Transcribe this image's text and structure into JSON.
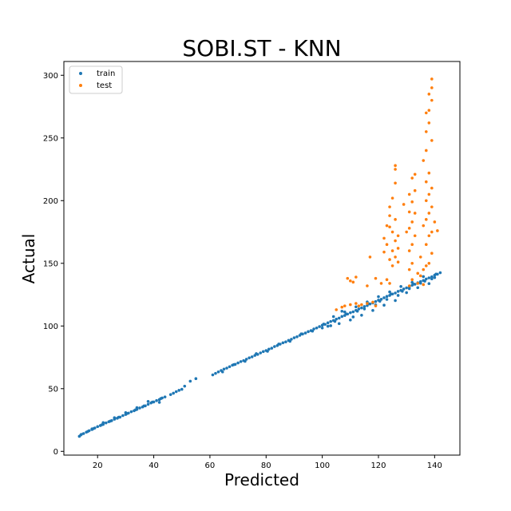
{
  "chart_data": {
    "type": "scatter",
    "title": "SOBI.ST - KNN",
    "xlabel": "Predicted",
    "ylabel": "Actual",
    "xlim": [
      8,
      149
    ],
    "ylim": [
      -3,
      311
    ],
    "xticks": [
      20,
      40,
      60,
      80,
      100,
      120,
      140
    ],
    "yticks": [
      0,
      50,
      100,
      150,
      200,
      250,
      300
    ],
    "grid": false,
    "legend": "top-left",
    "series": [
      {
        "name": "train",
        "color": "#1f77b4",
        "points": [
          [
            13.5,
            12
          ],
          [
            14.2,
            13.5
          ],
          [
            15,
            14.2
          ],
          [
            16,
            15.3
          ],
          [
            17,
            16.5
          ],
          [
            18,
            17.4
          ],
          [
            19,
            18.6
          ],
          [
            20,
            19.7
          ],
          [
            21,
            20.6
          ],
          [
            22,
            21.5
          ],
          [
            23,
            22.7
          ],
          [
            24,
            23.6
          ],
          [
            25,
            24.5
          ],
          [
            26,
            25.6
          ],
          [
            27,
            26.4
          ],
          [
            28,
            27.3
          ],
          [
            29,
            28.5
          ],
          [
            30,
            29.4
          ],
          [
            31,
            30.5
          ],
          [
            32,
            31.6
          ],
          [
            33,
            32.4
          ],
          [
            34,
            33.5
          ],
          [
            35,
            34.6
          ],
          [
            36,
            35.4
          ],
          [
            37,
            36.3
          ],
          [
            38,
            37.5
          ],
          [
            39,
            38.6
          ],
          [
            40,
            39.4
          ],
          [
            41,
            40.5
          ],
          [
            42,
            41.3
          ],
          [
            43,
            42.6
          ],
          [
            44,
            43.4
          ],
          [
            14,
            13
          ],
          [
            16.5,
            15.8
          ],
          [
            18.5,
            18.1
          ],
          [
            21.5,
            21.2
          ],
          [
            24.5,
            24.1
          ],
          [
            27.5,
            27.2
          ],
          [
            30.5,
            30.2
          ],
          [
            33.5,
            33.1
          ],
          [
            36.5,
            36.2
          ],
          [
            39.5,
            39.3
          ],
          [
            42.5,
            42.1
          ],
          [
            46,
            45.3
          ],
          [
            47,
            46.4
          ],
          [
            48,
            47.6
          ],
          [
            49,
            48.7
          ],
          [
            50,
            49.5
          ],
          [
            51,
            52
          ],
          [
            53,
            56
          ],
          [
            55,
            58
          ],
          [
            61,
            61
          ],
          [
            62,
            62.2
          ],
          [
            63,
            63.4
          ],
          [
            64,
            64.5
          ],
          [
            65,
            65.6
          ],
          [
            66,
            66.4
          ],
          [
            67,
            67.5
          ],
          [
            68,
            68.7
          ],
          [
            69,
            69.4
          ],
          [
            70,
            70.5
          ],
          [
            71,
            71.6
          ],
          [
            72,
            72.4
          ],
          [
            73,
            73.5
          ],
          [
            74,
            74.6
          ],
          [
            75,
            75.4
          ],
          [
            76,
            76.5
          ],
          [
            77,
            77.3
          ],
          [
            78,
            78.5
          ],
          [
            79,
            79.6
          ],
          [
            80,
            80.4
          ],
          [
            81,
            81.5
          ],
          [
            82,
            82.3
          ],
          [
            83,
            83.6
          ],
          [
            84,
            84.4
          ],
          [
            85,
            85.5
          ],
          [
            86,
            86.6
          ],
          [
            87,
            87.3
          ],
          [
            88,
            88.5
          ],
          [
            89,
            89.4
          ],
          [
            90,
            90.6
          ],
          [
            91,
            91.4
          ],
          [
            92,
            92.5
          ],
          [
            93,
            93.6
          ],
          [
            94,
            94.4
          ],
          [
            95,
            95.5
          ],
          [
            96,
            96.3
          ],
          [
            97,
            97.6
          ],
          [
            98,
            98.4
          ],
          [
            99,
            99.5
          ],
          [
            100,
            100.6
          ],
          [
            101,
            101.3
          ],
          [
            102,
            102.5
          ],
          [
            103,
            103.6
          ],
          [
            104,
            104.4
          ],
          [
            105,
            105.5
          ],
          [
            106,
            106.3
          ],
          [
            107,
            107.6
          ],
          [
            108,
            108.4
          ],
          [
            109,
            109.5
          ],
          [
            110,
            110.6
          ],
          [
            111,
            111.3
          ],
          [
            112,
            112.5
          ],
          [
            113,
            113.6
          ],
          [
            114,
            114.4
          ],
          [
            115,
            115.5
          ],
          [
            116,
            116.3
          ],
          [
            117,
            117.6
          ],
          [
            118,
            118.4
          ],
          [
            119,
            119.5
          ],
          [
            120,
            120.6
          ],
          [
            121,
            121.3
          ],
          [
            122,
            122.5
          ],
          [
            123,
            123.6
          ],
          [
            124,
            124.4
          ],
          [
            125,
            125.5
          ],
          [
            126,
            126.3
          ],
          [
            127,
            127.6
          ],
          [
            128,
            128.4
          ],
          [
            129,
            129.5
          ],
          [
            130,
            130.4
          ],
          [
            131,
            131.2
          ],
          [
            132,
            132.5
          ],
          [
            133,
            133.3
          ],
          [
            134,
            134.5
          ],
          [
            135,
            135.4
          ],
          [
            136,
            136.3
          ],
          [
            137,
            137.5
          ],
          [
            138,
            138.4
          ],
          [
            139,
            139.2
          ],
          [
            140,
            140.5
          ],
          [
            141,
            141.3
          ],
          [
            142,
            142.5
          ],
          [
            64.5,
            63.4
          ],
          [
            68.5,
            69.2
          ],
          [
            72.5,
            71.8
          ],
          [
            76.5,
            77.9
          ],
          [
            80.5,
            79.8
          ],
          [
            84.5,
            85.6
          ],
          [
            88.5,
            87.8
          ],
          [
            92.5,
            93.7
          ],
          [
            96.5,
            95.9
          ],
          [
            100.5,
            101.5
          ],
          [
            104.5,
            103.7
          ],
          [
            108.5,
            109.6
          ],
          [
            112.5,
            111.8
          ],
          [
            116.5,
            117.7
          ],
          [
            120.5,
            119.8
          ],
          [
            124.5,
            125.5
          ],
          [
            128.5,
            127.7
          ],
          [
            132.5,
            133.4
          ],
          [
            136.5,
            135.8
          ],
          [
            140.5,
            141.4
          ],
          [
            102,
            99.8
          ],
          [
            104,
            107.5
          ],
          [
            106,
            101.9
          ],
          [
            108,
            111.2
          ],
          [
            110,
            104.8
          ],
          [
            112,
            115.3
          ],
          [
            114,
            108.6
          ],
          [
            116,
            119.2
          ],
          [
            118,
            112.4
          ],
          [
            120,
            123.4
          ],
          [
            122,
            116.6
          ],
          [
            124,
            127.2
          ],
          [
            126,
            120.3
          ],
          [
            128,
            131.5
          ],
          [
            130,
            126.6
          ],
          [
            132,
            134.8
          ],
          [
            134,
            130.6
          ],
          [
            136,
            139.4
          ],
          [
            138,
            133.8
          ],
          [
            140,
            138.6
          ],
          [
            100,
            98.4
          ],
          [
            103,
            100.2
          ],
          [
            107,
            111.8
          ],
          [
            111,
            107.2
          ],
          [
            115,
            113.6
          ],
          [
            119,
            116.8
          ],
          [
            123,
            121.2
          ],
          [
            127,
            124.4
          ],
          [
            131,
            129.8
          ],
          [
            135,
            134.1
          ],
          [
            139,
            137.6
          ],
          [
            42,
            39.1
          ],
          [
            38,
            39.8
          ],
          [
            34,
            34.9
          ],
          [
            30,
            30.9
          ],
          [
            26,
            26.8
          ],
          [
            22,
            22.9
          ],
          [
            18,
            17.9
          ]
        ]
      },
      {
        "name": "test",
        "color": "#ff7f0e",
        "points": [
          [
            109,
            138
          ],
          [
            110,
            136
          ],
          [
            111,
            135
          ],
          [
            112,
            139
          ],
          [
            116,
            132
          ],
          [
            117,
            155
          ],
          [
            119,
            138
          ],
          [
            121,
            134
          ],
          [
            123,
            137
          ],
          [
            124,
            134
          ],
          [
            105,
            113
          ],
          [
            107,
            115
          ],
          [
            108,
            116
          ],
          [
            110,
            117
          ],
          [
            112,
            118
          ],
          [
            113,
            116
          ],
          [
            114,
            117
          ],
          [
            116,
            118
          ],
          [
            118,
            119
          ],
          [
            119,
            116
          ],
          [
            122,
            159
          ],
          [
            122,
            170
          ],
          [
            123,
            165
          ],
          [
            123,
            180
          ],
          [
            124,
            153
          ],
          [
            124,
            188
          ],
          [
            124,
            195
          ],
          [
            125,
            148
          ],
          [
            125,
            160
          ],
          [
            125,
            175
          ],
          [
            125,
            202
          ],
          [
            126,
            155
          ],
          [
            126,
            168
          ],
          [
            126,
            185
          ],
          [
            126,
            214
          ],
          [
            127,
            162
          ],
          [
            127,
            151
          ],
          [
            127,
            172
          ],
          [
            126,
            225
          ],
          [
            126,
            228
          ],
          [
            124,
            179
          ],
          [
            131,
            132
          ],
          [
            131,
            145
          ],
          [
            131,
            160
          ],
          [
            131,
            178
          ],
          [
            131,
            191
          ],
          [
            131,
            205
          ],
          [
            132,
            137
          ],
          [
            132,
            150
          ],
          [
            132,
            165
          ],
          [
            132,
            183
          ],
          [
            132,
            199
          ],
          [
            132,
            218
          ],
          [
            133,
            172
          ],
          [
            133,
            221
          ],
          [
            133,
            190
          ],
          [
            133,
            208
          ],
          [
            130,
            175
          ],
          [
            129,
            197
          ],
          [
            134,
            134
          ],
          [
            134,
            142
          ],
          [
            135,
            140
          ],
          [
            135,
            155
          ],
          [
            136,
            133
          ],
          [
            136,
            145
          ],
          [
            136,
            180
          ],
          [
            136,
            232
          ],
          [
            137,
            148
          ],
          [
            137,
            165
          ],
          [
            137,
            185
          ],
          [
            137,
            200
          ],
          [
            137,
            215
          ],
          [
            137,
            240
          ],
          [
            137,
            255
          ],
          [
            138,
            150
          ],
          [
            138,
            172
          ],
          [
            138,
            190
          ],
          [
            138,
            205
          ],
          [
            138,
            222
          ],
          [
            138,
            262
          ],
          [
            138,
            272
          ],
          [
            139,
            158
          ],
          [
            139,
            175
          ],
          [
            139,
            195
          ],
          [
            139,
            210
          ],
          [
            139,
            248
          ],
          [
            139,
            280
          ],
          [
            139,
            290
          ],
          [
            139,
            297
          ],
          [
            138,
            285
          ],
          [
            137,
            270
          ],
          [
            141,
            176
          ],
          [
            140,
            183
          ]
        ]
      }
    ]
  }
}
